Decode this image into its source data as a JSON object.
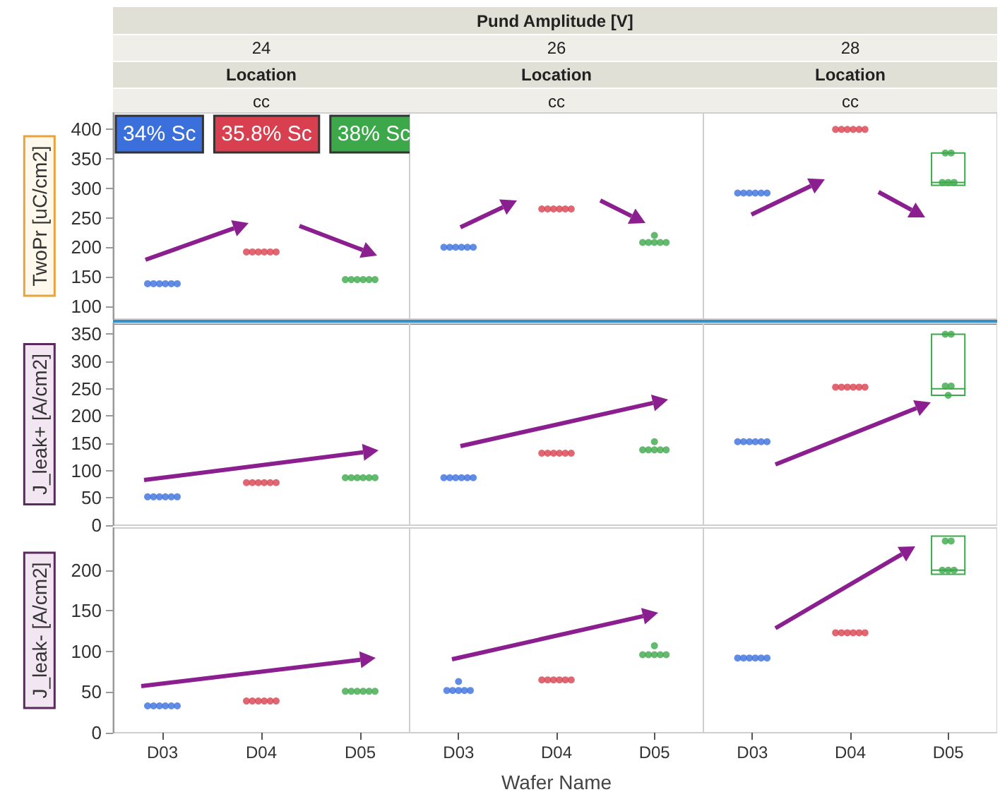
{
  "chart_data": [
    {
      "type": "scatter",
      "title": "24",
      "subtitle": "Location",
      "annotations": [
        "Pund Amplitude [V]",
        "cc"
      ],
      "ylabel": "TwoPr [uC/cm2]",
      "categories": [
        "D03",
        "D04",
        "D05"
      ],
      "ylim": [
        78,
        428
      ],
      "yticks": [
        100,
        150,
        200,
        250,
        300,
        350,
        400
      ],
      "tick_labels": "y",
      "marker": "circle",
      "legend": "top left",
      "series": [
        {
          "name": "34% Sc",
          "color": "#3b6fdc",
          "x": [
            "D03",
            "D03",
            "D03",
            "D03",
            "D03",
            "D03"
          ],
          "values": [
            138,
            138,
            138,
            138,
            138,
            138
          ]
        },
        {
          "name": "35.8% Sc",
          "color": "#d8404f",
          "x": [
            "D04",
            "D04",
            "D04",
            "D04",
            "D04",
            "D04"
          ],
          "values": [
            192,
            192,
            192,
            192,
            192,
            192
          ]
        },
        {
          "name": "38% Sc",
          "color": "#3ca84a",
          "x": [
            "D05",
            "D05",
            "D05",
            "D05",
            "D05",
            "D05"
          ],
          "values": [
            145,
            145,
            145,
            145,
            145,
            145
          ]
        }
      ]
    },
    {
      "type": "scatter",
      "title": "26",
      "subtitle": "Location",
      "annotations": [
        "cc"
      ],
      "categories": [
        "D03",
        "D04",
        "D05"
      ],
      "ylim": [
        78,
        428
      ],
      "yticks": [
        100,
        150,
        200,
        250,
        300,
        350,
        400
      ],
      "tick_labels": false,
      "marker": "circle",
      "series": [
        {
          "color": "#3b6fdc",
          "x": [
            "D03",
            "D03",
            "D03",
            "D03",
            "D03",
            "D03"
          ],
          "values": [
            200,
            200,
            200,
            200,
            200,
            200
          ]
        },
        {
          "color": "#d8404f",
          "x": [
            "D04",
            "D04",
            "D04",
            "D04",
            "D04",
            "D04"
          ],
          "values": [
            265,
            265,
            265,
            265,
            265,
            265
          ]
        },
        {
          "color": "#3ca84a",
          "x": [
            "D05",
            "D05",
            "D05",
            "D05",
            "D05",
            "D05"
          ],
          "values": [
            220,
            208,
            208,
            208,
            208,
            208
          ]
        }
      ]
    },
    {
      "type": "scatter",
      "title": "28",
      "subtitle": "Location",
      "annotations": [
        "cc"
      ],
      "categories": [
        "D03",
        "D04",
        "D05"
      ],
      "ylim": [
        78,
        428
      ],
      "yticks": [
        100,
        150,
        200,
        250,
        300,
        350,
        400
      ],
      "tick_labels": false,
      "marker": "circle",
      "series": [
        {
          "color": "#3b6fdc",
          "x": [
            "D03",
            "D03",
            "D03",
            "D03",
            "D03",
            "D03"
          ],
          "values": [
            292,
            292,
            292,
            292,
            292,
            292
          ]
        },
        {
          "color": "#d8404f",
          "x": [
            "D04",
            "D04",
            "D04",
            "D04",
            "D04",
            "D04"
          ],
          "values": [
            400,
            400,
            400,
            400,
            400,
            400
          ]
        },
        {
          "color": "#3ca84a",
          "x": [
            "D05",
            "D05",
            "D05",
            "D05",
            "D05"
          ],
          "values": [
            360,
            360,
            310,
            310,
            310
          ]
        },
        {
          "type": "box",
          "color": "#3ca84a",
          "boxes": [
            null,
            null,
            {
              "low": 305,
              "q1": 305,
              "median": 310,
              "q3": 360,
              "high": 360
            }
          ]
        }
      ]
    },
    {
      "type": "scatter",
      "ylabel": "J_leak+ [A/cm2]",
      "categories": [
        "D03",
        "D04",
        "D05"
      ],
      "ylim": [
        0,
        370
      ],
      "yticks": [
        0,
        50,
        100,
        150,
        200,
        250,
        300,
        350
      ],
      "tick_labels": "y",
      "marker": "circle",
      "series": [
        {
          "color": "#3b6fdc",
          "x": [
            "D03",
            "D03",
            "D03",
            "D03",
            "D03",
            "D03"
          ],
          "values": [
            52,
            52,
            52,
            52,
            52,
            52
          ]
        },
        {
          "color": "#d8404f",
          "x": [
            "D04",
            "D04",
            "D04",
            "D04",
            "D04",
            "D04"
          ],
          "values": [
            78,
            78,
            78,
            78,
            78,
            78
          ]
        },
        {
          "color": "#3ca84a",
          "x": [
            "D05",
            "D05",
            "D05",
            "D05",
            "D05",
            "D05"
          ],
          "values": [
            87,
            87,
            87,
            87,
            87,
            87
          ]
        }
      ]
    },
    {
      "type": "scatter",
      "categories": [
        "D03",
        "D04",
        "D05"
      ],
      "ylim": [
        0,
        370
      ],
      "yticks": [
        0,
        50,
        100,
        150,
        200,
        250,
        300,
        350
      ],
      "tick_labels": false,
      "marker": "circle",
      "series": [
        {
          "color": "#3b6fdc",
          "x": [
            "D03",
            "D03",
            "D03",
            "D03",
            "D03",
            "D03"
          ],
          "values": [
            87,
            87,
            87,
            87,
            87,
            87
          ]
        },
        {
          "color": "#d8404f",
          "x": [
            "D04",
            "D04",
            "D04",
            "D04",
            "D04",
            "D04"
          ],
          "values": [
            132,
            132,
            132,
            132,
            132,
            132
          ]
        },
        {
          "color": "#3ca84a",
          "x": [
            "D05",
            "D05",
            "D05",
            "D05",
            "D05",
            "D05"
          ],
          "values": [
            153,
            138,
            138,
            138,
            138,
            138
          ]
        }
      ]
    },
    {
      "type": "scatter",
      "categories": [
        "D03",
        "D04",
        "D05"
      ],
      "ylim": [
        0,
        370
      ],
      "yticks": [
        0,
        50,
        100,
        150,
        200,
        250,
        300,
        350
      ],
      "tick_labels": false,
      "marker": "circle",
      "series": [
        {
          "color": "#3b6fdc",
          "x": [
            "D03",
            "D03",
            "D03",
            "D03",
            "D03",
            "D03"
          ],
          "values": [
            153,
            153,
            153,
            153,
            153,
            153
          ]
        },
        {
          "color": "#d8404f",
          "x": [
            "D04",
            "D04",
            "D04",
            "D04",
            "D04",
            "D04"
          ],
          "values": [
            253,
            253,
            253,
            253,
            253,
            253
          ]
        },
        {
          "color": "#3ca84a",
          "x": [
            "D05",
            "D05",
            "D05",
            "D05",
            "D05"
          ],
          "values": [
            350,
            350,
            255,
            255,
            238
          ]
        },
        {
          "type": "box",
          "color": "#3ca84a",
          "boxes": [
            null,
            null,
            {
              "low": 238,
              "q1": 238,
              "median": 250,
              "q3": 350,
              "high": 350
            }
          ]
        }
      ]
    },
    {
      "type": "scatter",
      "ylabel": "J_leak- [A/cm2]",
      "categories": [
        "D03",
        "D04",
        "D05"
      ],
      "ylim": [
        0,
        252
      ],
      "yticks": [
        0,
        50,
        100,
        150,
        200
      ],
      "marker": "circle",
      "series": [
        {
          "color": "#3b6fdc",
          "x": [
            "D03",
            "D03",
            "D03",
            "D03",
            "D03",
            "D03"
          ],
          "values": [
            33,
            33,
            33,
            33,
            33,
            33
          ]
        },
        {
          "color": "#d8404f",
          "x": [
            "D04",
            "D04",
            "D04",
            "D04",
            "D04",
            "D04"
          ],
          "values": [
            39,
            39,
            39,
            39,
            39,
            39
          ]
        },
        {
          "color": "#3ca84a",
          "x": [
            "D05",
            "D05",
            "D05",
            "D05",
            "D05",
            "D05"
          ],
          "values": [
            51,
            51,
            51,
            51,
            51,
            51
          ]
        }
      ]
    },
    {
      "type": "scatter",
      "xlabel": "Wafer Name",
      "categories": [
        "D03",
        "D04",
        "D05"
      ],
      "ylim": [
        0,
        252
      ],
      "yticks": [
        0,
        50,
        100,
        150,
        200
      ],
      "tick_labels": "x",
      "marker": "circle",
      "series": [
        {
          "color": "#3b6fdc",
          "x": [
            "D03",
            "D03",
            "D03",
            "D03",
            "D03",
            "D03"
          ],
          "values": [
            63,
            52,
            52,
            52,
            52,
            52
          ]
        },
        {
          "color": "#d8404f",
          "x": [
            "D04",
            "D04",
            "D04",
            "D04",
            "D04",
            "D04"
          ],
          "values": [
            65,
            65,
            65,
            65,
            65,
            65
          ]
        },
        {
          "color": "#3ca84a",
          "x": [
            "D05",
            "D05",
            "D05",
            "D05",
            "D05",
            "D05"
          ],
          "values": [
            107,
            96,
            96,
            96,
            96,
            96
          ]
        }
      ]
    },
    {
      "type": "scatter",
      "categories": [
        "D03",
        "D04",
        "D05"
      ],
      "ylim": [
        0,
        252
      ],
      "yticks": [
        0,
        50,
        100,
        150,
        200
      ],
      "tick_labels": "x",
      "marker": "circle",
      "series": [
        {
          "color": "#3b6fdc",
          "x": [
            "D03",
            "D03",
            "D03",
            "D03",
            "D03",
            "D03"
          ],
          "values": [
            92,
            92,
            92,
            92,
            92,
            92
          ]
        },
        {
          "color": "#d8404f",
          "x": [
            "D04",
            "D04",
            "D04",
            "D04",
            "D04",
            "D04"
          ],
          "values": [
            123,
            123,
            123,
            123,
            123,
            123
          ]
        },
        {
          "color": "#3ca84a",
          "x": [
            "D05",
            "D05",
            "D05",
            "D05",
            "D05"
          ],
          "values": [
            236,
            236,
            200,
            200,
            200
          ]
        },
        {
          "type": "box",
          "color": "#3ca84a",
          "boxes": [
            null,
            null,
            {
              "low": 195,
              "q1": 195,
              "median": 200,
              "q3": 242,
              "high": 242
            }
          ]
        }
      ]
    }
  ]
}
